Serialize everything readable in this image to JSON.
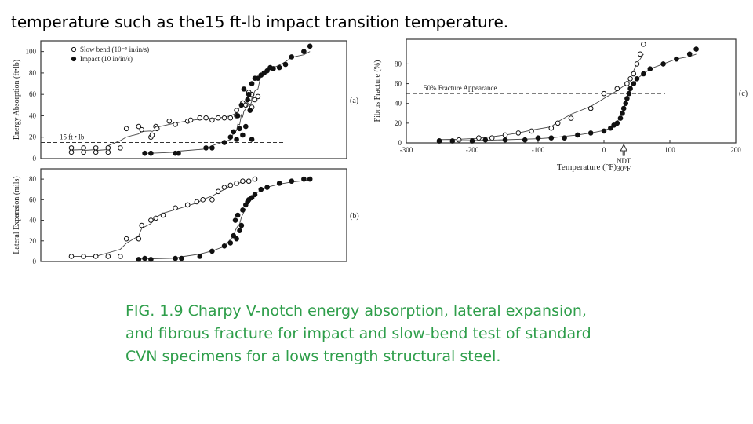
{
  "header": {
    "text": "temperature such as the15 ft-lb impact transition temperature."
  },
  "caption": {
    "text": "FIG. 1.9 Charpy V-notch energy absorption, lateral expansion, and fibrous fracture for impact and slow-bend test of standard CVN specimens for a lows trength structural steel."
  },
  "chart_data": [
    {
      "type": "scatter",
      "panel": "(a)",
      "ylabel": "Energy Absorption (ft•lb)",
      "yticks": [
        "0",
        "20",
        "40",
        "60",
        "80",
        "100"
      ],
      "ylim": [
        0,
        110
      ],
      "xlim": [
        -300,
        200
      ],
      "legend": [
        "Slow bend (10⁻⁵ in/in/s)",
        "Impact (10 in/in/s)"
      ],
      "legend_position": "top-left",
      "annotation": "15 ft • lb",
      "threshold": 15,
      "series": [
        {
          "name": "Slow bend (10⁻⁵ in/in/s)",
          "marker": "open",
          "x": [
            -250,
            -250,
            -230,
            -230,
            -210,
            -210,
            -190,
            -190,
            -170,
            -160,
            -140,
            -135,
            -120,
            -118,
            -112,
            -110,
            -90,
            -80,
            -60,
            -55,
            -40,
            -30,
            -20,
            -10,
            0,
            10,
            20,
            20,
            30,
            35,
            40,
            45,
            45,
            50,
            55
          ],
          "y": [
            10,
            6,
            10,
            6,
            10,
            6,
            10,
            6,
            10,
            28,
            30,
            27,
            20,
            22,
            30,
            28,
            35,
            32,
            35,
            36,
            38,
            38,
            36,
            38,
            38,
            38,
            45,
            40,
            52,
            50,
            62,
            48,
            60,
            55,
            58
          ]
        },
        {
          "name": "Impact (10 in/in/s)",
          "marker": "filled",
          "x": [
            -130,
            -120,
            -80,
            -75,
            -30,
            -20,
            0,
            10,
            15,
            20,
            22,
            25,
            28,
            30,
            32,
            35,
            38,
            40,
            42,
            45,
            45,
            50,
            55,
            60,
            65,
            70,
            75,
            80,
            90,
            100,
            110,
            130,
            140
          ],
          "y": [
            5,
            5,
            5,
            5,
            10,
            10,
            15,
            20,
            25,
            18,
            40,
            28,
            50,
            22,
            65,
            30,
            55,
            60,
            45,
            70,
            18,
            75,
            75,
            78,
            80,
            82,
            85,
            84,
            85,
            88,
            95,
            100,
            105
          ]
        }
      ]
    },
    {
      "type": "scatter",
      "panel": "(b)",
      "ylabel": "Lateral Expansion (mils)",
      "yticks": [
        "0",
        "20",
        "40",
        "60",
        "80"
      ],
      "ylim": [
        0,
        90
      ],
      "xlim": [
        -300,
        200
      ],
      "series": [
        {
          "name": "Slow bend",
          "marker": "open",
          "x": [
            -250,
            -230,
            -210,
            -190,
            -170,
            -160,
            -140,
            -135,
            -120,
            -112,
            -100,
            -80,
            -60,
            -45,
            -35,
            -20,
            -10,
            0,
            10,
            20,
            30,
            40,
            50
          ],
          "y": [
            5,
            5,
            5,
            5,
            5,
            22,
            22,
            35,
            40,
            42,
            45,
            52,
            55,
            58,
            60,
            60,
            68,
            72,
            74,
            76,
            78,
            78,
            80
          ]
        },
        {
          "name": "Impact",
          "marker": "filled",
          "x": [
            -140,
            -130,
            -120,
            -80,
            -70,
            -40,
            -20,
            0,
            10,
            15,
            18,
            20,
            22,
            25,
            28,
            30,
            35,
            38,
            40,
            45,
            50,
            60,
            70,
            90,
            110,
            130,
            140
          ],
          "y": [
            2,
            3,
            2,
            3,
            3,
            5,
            10,
            15,
            18,
            25,
            40,
            22,
            45,
            30,
            35,
            50,
            55,
            58,
            60,
            62,
            65,
            70,
            72,
            76,
            78,
            80,
            80
          ]
        }
      ]
    },
    {
      "type": "scatter",
      "panel": "(c)",
      "ylabel": "Fibrus Fracture (%)",
      "xlabel": "Temperature (°F)",
      "yticks": [
        "0",
        "20",
        "40",
        "60",
        "80"
      ],
      "xticks": [
        "-300",
        "-200",
        "-100",
        "0",
        "100",
        "200"
      ],
      "ylim": [
        0,
        105
      ],
      "xlim": [
        -300,
        200
      ],
      "annotation": "50% Fracture Appearance",
      "threshold": 50,
      "ndt_label": [
        "NDT",
        "30°F"
      ],
      "ndt_temperature": 30,
      "series": [
        {
          "name": "Slow bend",
          "marker": "open",
          "x": [
            -250,
            -220,
            -190,
            -170,
            -150,
            -130,
            -110,
            -80,
            -70,
            -50,
            -20,
            0,
            20,
            35,
            40,
            45,
            50,
            55,
            60
          ],
          "y": [
            2,
            3,
            5,
            5,
            8,
            10,
            12,
            15,
            20,
            25,
            35,
            50,
            55,
            60,
            65,
            70,
            80,
            90,
            100
          ]
        },
        {
          "name": "Impact",
          "marker": "filled",
          "x": [
            -250,
            -230,
            -200,
            -180,
            -150,
            -120,
            -100,
            -80,
            -60,
            -40,
            -20,
            0,
            10,
            15,
            20,
            25,
            28,
            30,
            33,
            35,
            38,
            40,
            45,
            50,
            60,
            70,
            90,
            110,
            130,
            140
          ],
          "y": [
            2,
            2,
            2,
            3,
            3,
            3,
            5,
            5,
            5,
            8,
            10,
            12,
            15,
            18,
            20,
            25,
            30,
            35,
            40,
            45,
            50,
            55,
            60,
            65,
            70,
            75,
            80,
            85,
            90,
            95
          ]
        }
      ]
    }
  ]
}
